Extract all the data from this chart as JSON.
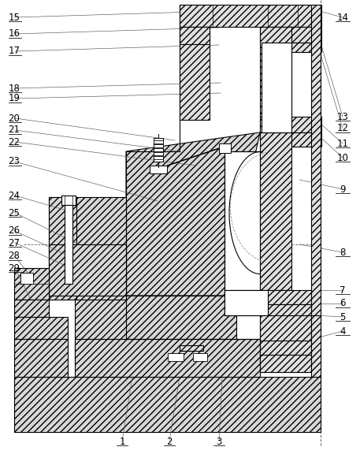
{
  "bg_color": "#ffffff",
  "hatch": "////",
  "ec": "black",
  "lw": 0.8,
  "label_fs": 8.5,
  "labels_left": [
    [
      "15",
      10,
      22,
      280,
      14
    ],
    [
      "16",
      10,
      43,
      278,
      35
    ],
    [
      "17",
      10,
      65,
      278,
      57
    ],
    [
      "18",
      10,
      112,
      280,
      105
    ],
    [
      "19",
      10,
      125,
      280,
      118
    ],
    [
      "20",
      10,
      150,
      222,
      178
    ],
    [
      "21",
      10,
      165,
      228,
      192
    ],
    [
      "22",
      10,
      180,
      248,
      210
    ],
    [
      "23",
      10,
      205,
      200,
      255
    ],
    [
      "24",
      10,
      248,
      88,
      268
    ],
    [
      "25",
      10,
      270,
      100,
      310
    ],
    [
      "26",
      10,
      293,
      88,
      325
    ],
    [
      "27",
      10,
      308,
      90,
      340
    ],
    [
      "28",
      10,
      325,
      42,
      355
    ],
    [
      "29",
      10,
      340,
      38,
      378
    ]
  ],
  "labels_right": [
    [
      "14",
      443,
      22,
      405,
      14
    ],
    [
      "13",
      443,
      148,
      402,
      38
    ],
    [
      "12",
      443,
      163,
      402,
      52
    ],
    [
      "11",
      443,
      182,
      397,
      148
    ],
    [
      "10",
      443,
      200,
      397,
      165
    ],
    [
      "9",
      443,
      240,
      380,
      228
    ],
    [
      "8",
      443,
      320,
      380,
      310
    ],
    [
      "7",
      443,
      368,
      398,
      368
    ],
    [
      "6",
      443,
      385,
      402,
      385
    ],
    [
      "5",
      443,
      402,
      398,
      400
    ],
    [
      "4",
      443,
      420,
      405,
      428
    ]
  ],
  "labels_bottom": [
    [
      "1",
      155,
      560,
      168,
      478
    ],
    [
      "2",
      215,
      560,
      228,
      478
    ],
    [
      "3",
      278,
      560,
      282,
      478
    ]
  ]
}
